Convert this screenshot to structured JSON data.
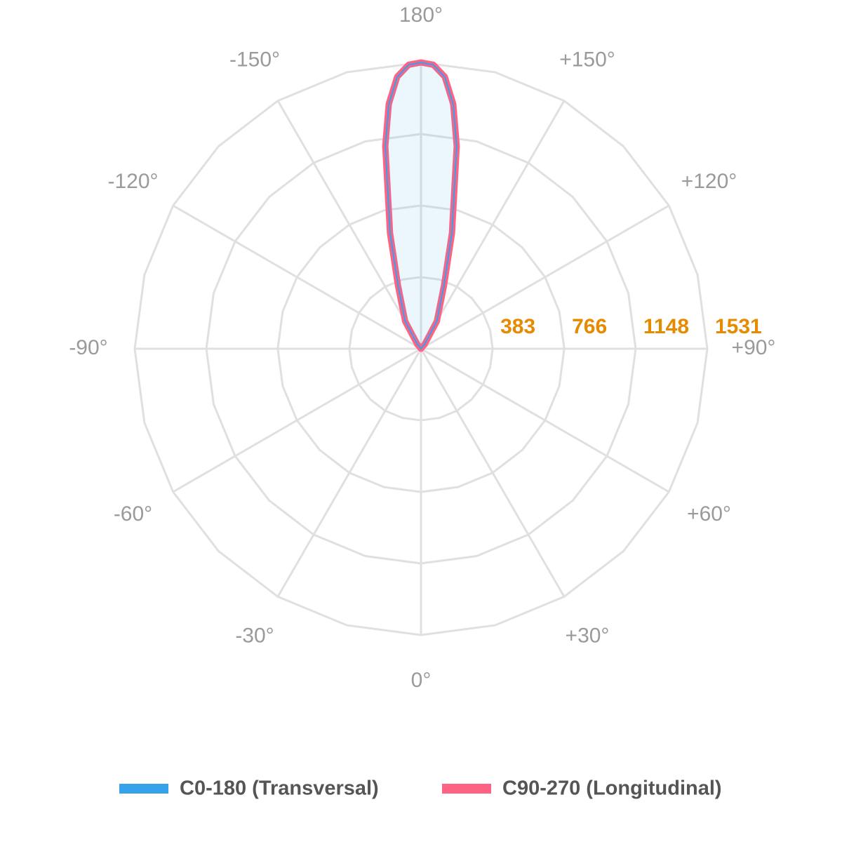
{
  "chart_data": {
    "type": "polar",
    "angles": [
      90,
      120,
      140,
      150,
      155,
      160,
      165,
      170,
      172.5,
      175,
      177.5,
      180,
      -177.5,
      -175,
      -172.5,
      -170,
      -165,
      -160,
      -155,
      -150,
      -140,
      -120,
      -90
    ],
    "series": [
      {
        "name": "C0-180 (Transversal)",
        "color": "#36a2eb",
        "values": [
          0,
          0,
          30,
          170,
          230,
          360,
          640,
          1100,
          1320,
          1460,
          1520,
          1531,
          1520,
          1460,
          1320,
          1100,
          640,
          360,
          230,
          170,
          30,
          0,
          0
        ]
      },
      {
        "name": "C90-270 (Longitudinal)",
        "color": "#ff6384",
        "values": [
          0,
          0,
          30,
          170,
          230,
          360,
          640,
          1100,
          1320,
          1460,
          1520,
          1531,
          1520,
          1460,
          1320,
          1100,
          640,
          360,
          230,
          170,
          30,
          0,
          0
        ]
      }
    ],
    "rlim": [
      0,
      1531
    ],
    "rticks": [
      383,
      766,
      1148,
      1531
    ],
    "thetaticks": [
      {
        "value": 180,
        "label": "180°"
      },
      {
        "value": -150,
        "label": "-150°"
      },
      {
        "value": 150,
        "label": "+150°"
      },
      {
        "value": -120,
        "label": "-120°"
      },
      {
        "value": 120,
        "label": "+120°"
      },
      {
        "value": -90,
        "label": "-90°"
      },
      {
        "value": 90,
        "label": "+90°"
      },
      {
        "value": -60,
        "label": "-60°"
      },
      {
        "value": 60,
        "label": "+60°"
      },
      {
        "value": -30,
        "label": "-30°"
      },
      {
        "value": 30,
        "label": "+30°"
      },
      {
        "value": 0,
        "label": "0°"
      }
    ],
    "grid": true
  }
}
